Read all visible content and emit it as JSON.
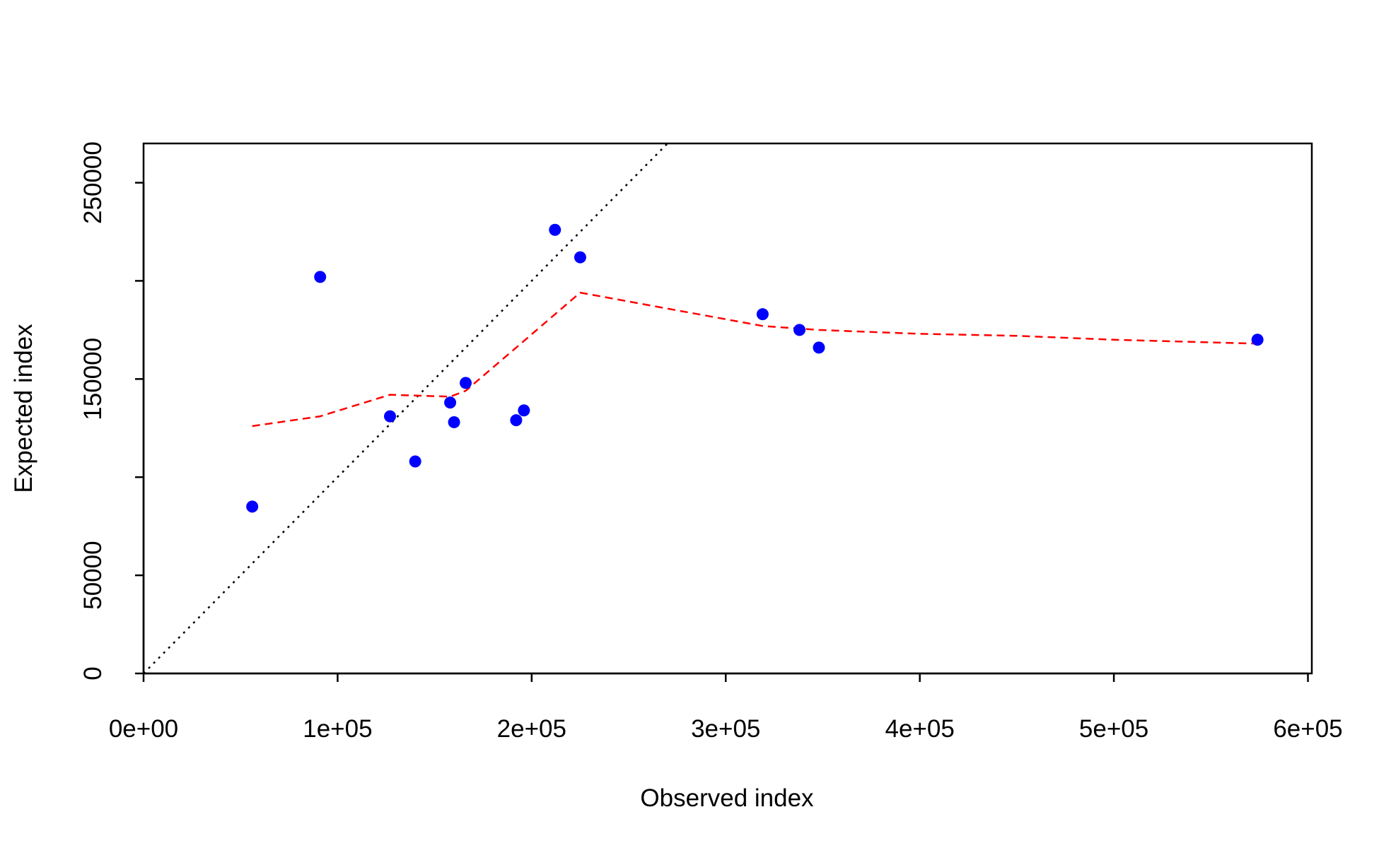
{
  "chart_data": {
    "type": "scatter",
    "title": "",
    "xlabel": "Observed index",
    "ylabel": "Expected index",
    "xlim": [
      0,
      602000
    ],
    "ylim": [
      0,
      270000
    ],
    "x_ticks": [
      0,
      100000,
      200000,
      300000,
      400000,
      500000,
      600000
    ],
    "x_tick_labels": [
      "0e+00",
      "1e+05",
      "2e+05",
      "3e+05",
      "4e+05",
      "5e+05",
      "6e+05"
    ],
    "y_ticks": [
      0,
      50000,
      100000,
      150000,
      200000,
      250000
    ],
    "y_tick_labels": [
      "0",
      "50000",
      "",
      "150000",
      "",
      "250000"
    ],
    "grid": false,
    "points": {
      "color": "#0000ff",
      "x": [
        56000,
        91000,
        127000,
        140000,
        158000,
        160000,
        166000,
        192000,
        196000,
        212000,
        225000,
        319000,
        338000,
        348000,
        574000
      ],
      "y": [
        85000,
        202000,
        131000,
        108000,
        138000,
        128000,
        148000,
        129000,
        134000,
        226000,
        212000,
        183000,
        175000,
        166000,
        170000
      ]
    },
    "identity_line": {
      "color": "#000000",
      "style": "dotted",
      "x": [
        0,
        270000
      ],
      "y": [
        0,
        270000
      ]
    },
    "smooth_line": {
      "color": "#ff0000",
      "style": "dashed",
      "x": [
        56000,
        91000,
        127000,
        158000,
        166000,
        192000,
        225000,
        319000,
        348000,
        400000,
        450000,
        500000,
        574000
      ],
      "y": [
        126000,
        131000,
        142000,
        141000,
        144000,
        166000,
        194000,
        177000,
        175000,
        173000,
        172000,
        170000,
        168000
      ]
    }
  }
}
